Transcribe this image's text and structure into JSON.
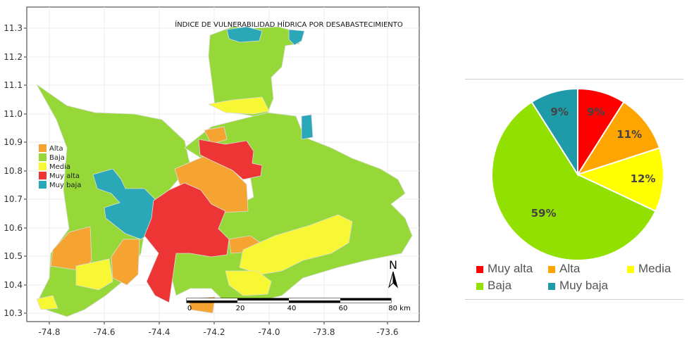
{
  "map": {
    "title": "ÍNDICE DE VULNERABILIDAD HÍDRICA POR DESABASTECIMIENTO",
    "y_ticks": [
      "11.3",
      "11.2",
      "11.1",
      "11.0",
      "10.9",
      "10.8",
      "10.7",
      "10.6",
      "10.5",
      "10.4",
      "10.3"
    ],
    "x_ticks": [
      "-74.8",
      "-74.6",
      "-74.4",
      "-74.2",
      "-74.0",
      "-73.8",
      "-73.6"
    ],
    "legend": [
      {
        "label": "Alta",
        "color": "#f5a431"
      },
      {
        "label": "Baja",
        "color": "#96d837"
      },
      {
        "label": "Media",
        "color": "#f7f733"
      },
      {
        "label": "Muy alta",
        "color": "#ee3535"
      },
      {
        "label": "Muy baja",
        "color": "#2aa8b8"
      }
    ],
    "north_label": "N",
    "scale_labels": [
      "0",
      "20",
      "40",
      "60",
      "80 km"
    ]
  },
  "chart_data": {
    "type": "pie",
    "slices": [
      {
        "name": "Muy alta",
        "value": 9,
        "label": "9%",
        "color": "#ff0000"
      },
      {
        "name": "Alta",
        "value": 11,
        "label": "11%",
        "color": "#ffa500"
      },
      {
        "name": "Media",
        "value": 12,
        "label": "12%",
        "color": "#ffff00"
      },
      {
        "name": "Baja",
        "value": 59,
        "label": "59%",
        "color": "#92e000"
      },
      {
        "name": "Muy baja",
        "value": 9,
        "label": "9%",
        "color": "#1f9aa8"
      }
    ],
    "legend_placement": "bottom"
  }
}
